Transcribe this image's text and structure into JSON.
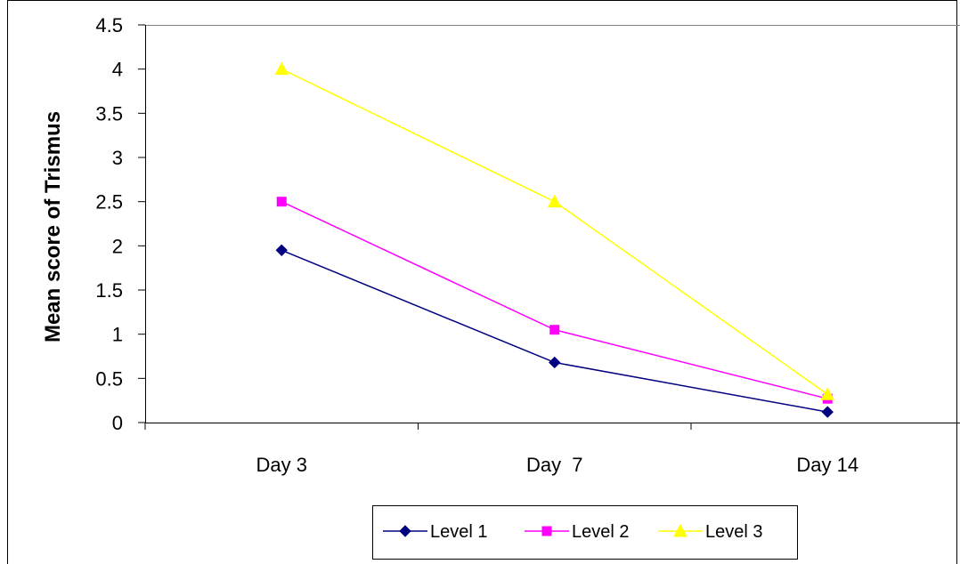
{
  "chart_data": {
    "type": "line",
    "categories": [
      "Day 3",
      "Day  7",
      "Day 14"
    ],
    "series": [
      {
        "name": "Level 1",
        "values": [
          1.95,
          0.68,
          0.12
        ],
        "color": "#000080",
        "marker": "diamond"
      },
      {
        "name": "Level 2",
        "values": [
          2.5,
          1.05,
          0.27
        ],
        "color": "#ff00ff",
        "marker": "square"
      },
      {
        "name": "Level 3",
        "values": [
          4.0,
          2.5,
          0.32
        ],
        "color": "#ffff00",
        "marker": "triangle"
      }
    ],
    "title": "",
    "xlabel": "",
    "ylabel": "Mean score of Trismus",
    "ylim": [
      0,
      4.5
    ],
    "yticks": [
      "0",
      "0.5",
      "1",
      "1.5",
      "2",
      "2.5",
      "3",
      "3.5",
      "4",
      "4.5"
    ],
    "grid": false,
    "legend_position": "bottom"
  }
}
